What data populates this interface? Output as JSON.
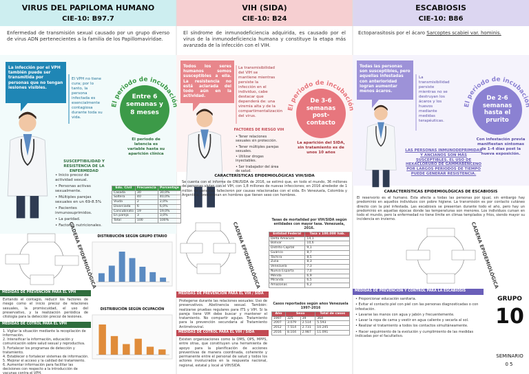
{
  "vph": {
    "title": "VIRUS DEL PAPILOMA HUMANO",
    "code": "CIE-10: B97.7",
    "description": "Enfermedad de transmisión sexual causado por un grupo diverso de virus ADN pertenecientes a la familia de los Papillomaviridae.",
    "callout": "La infección por el VPH también puede ser transmitida por personas que no tengan lesiones visibles.",
    "side_note": "El VPH no tiene cura; por lo tanto, la persona infectada es esencialmente contagiosa durante toda su vida.",
    "incubation_label": "El periodo de incubación",
    "incubation": "Entre 6 semanas y 8 meses",
    "incubation_note": "El periodo de latencia es variable hasta su aparición clínica",
    "susceptibility_title": "SUSCEPTIBILIDAD Y RESISTENCIA DE LA ENFERMEDAD",
    "susceptibility": [
      "Inicio precoz de actividad sexual.",
      "Personas activas sexualmente.",
      "Múltiples parejas sexuales en un 69-8.5%",
      "Pacientes inmunosuprimidos.",
      "La paridad.",
      "Factores nutricionales."
    ],
    "civil_table": {
      "header": [
        "Edo. Civil",
        "Frecuencia",
        "Porcentaje"
      ],
      "rows": [
        [
          "Casada",
          "30",
          "30,0%"
        ],
        [
          "Soltera",
          "40",
          "40,0%"
        ],
        [
          "Viuda",
          "2",
          "2,0%"
        ],
        [
          "Divorciada",
          "6",
          "6,0%"
        ],
        [
          "Concubinato",
          "19",
          "19,0%"
        ],
        [
          "En pareja",
          "3",
          "3,0%"
        ],
        [
          "Total",
          "100",
          "100%"
        ]
      ]
    },
    "cadena_label": "CADENA EPIDEMIOLÓGICA",
    "charts": [
      {
        "title": "DISTRIBUCIÓN SEGÚN GRUPO ETARIO",
        "values": [
          8,
          15,
          28,
          22,
          14,
          9,
          4
        ]
      },
      {
        "title": "DISTRIBUCIÓN SEGÚN OCUPACIÓN",
        "values": [
          34,
          21,
          12,
          18,
          9,
          6
        ]
      }
    ],
    "prevention_title": "MEDIDAS DE PREVENCIÓN PARA EL VPH",
    "prevention_text": "Evitando el contagio, reducir los factores de riesgo como el inicio precoz de relaciones sexuales, la promiscuidad, el uso del preservativo, y la realización periódica de citología para la detección precoz de lesiones.",
    "control_title": "MEDIDAS DE COTROL PARA EL VPH",
    "control_items": [
      "1. Vigilar la situación mediante la recopilación de información.",
      "2. Intensificar la información, educación y comunicación sobre salud sexual y reproductiva.",
      "3. Fortalecer los programas de detección y tratamiento.",
      "4. Establecer o fortalecer sistemas de información.",
      "5. Mejorar el acceso y la calidad del tratamiento.",
      "6. Aumentar información para facilitar las decisiones con respecto a la introducción de vacunas contra el VPH."
    ]
  },
  "vih": {
    "title": "VIH (SIDA)",
    "code": "CIE-10: B24",
    "description": "El síndrome de inmunodeficiencia adquirida, es causado por el virus de la inmunodeficiencia humana y constituye la etapa más avanzada de la infección con el VIH.",
    "callout": "Todos los seres humanos somos susceptibles a ella. La resistencia no está aclarada del todo aún en la actividad.",
    "side_note": "La transmisibilidad del VIH se mantiene mientras persiste la infección en el individuo, cabe destacar que dependerá de: una viremia alta y de la compartimentalización del virus.",
    "risk_title": "FACTORES DE RIESGO VIH",
    "risks": [
      "Tener relaciones sexuales sin protección.",
      "Tener múltiples parejas sexuales.",
      "Utilizar drogas inyectables.",
      "Ser trabajador del área de salud."
    ],
    "incubation_label": "El periodo de incubación",
    "incubation": "De 3-6 semanas post-contacto",
    "incubation_note": "La aparición del SIDA, sin tratamiento es de unos 10 años",
    "characteristics_title": "CARACTERÍSTICAS EPIDEMIOLÓGICAS VIH/SIDA",
    "characteristics": "Se cuenta con el informe de ONUSIDA de 2016, se estimó que, en todo el mundo, 36 millones de personas vivían con el VIH, con 1,8 millones de nuevas infecciones; en 2016 alrededor de 1 millón de personas fallecieron por causas relacionadas con el sida. En Venezuela, Colombia y Argentina, predominan en hombres que tienen sexo con hombres.",
    "cadena_label": "CADENA EPIDEMIOLÓGICA",
    "mortality_table": {
      "title": "Tasas de mortalidad por VIH/SIDA según entidades con mayor tasa. Venezuela, 2016.",
      "header": [
        "Entidad Federal",
        "Tasa x 100.000 hab."
      ],
      "rows": [
        [
          "Delta Amacuro",
          "14,1"
        ],
        [
          "Bolívar",
          "10,6"
        ],
        [
          "Distrito Capital",
          "9,1"
        ],
        [
          "Guárico",
          "8,7"
        ],
        [
          "Táchira",
          "8,5"
        ],
        [
          "Zulia",
          "8,3"
        ],
        [
          "Venezuela",
          "7,3"
        ],
        [
          "Nueva Esparta",
          "7,0"
        ],
        [
          "Mérida",
          "6,9"
        ],
        [
          "Miranda",
          "6,5"
        ],
        [
          "Amazonas",
          "6,2"
        ]
      ]
    },
    "cases_table": {
      "title": "Casos reportados según años Venezuela 1997-2016",
      "header": [
        "Año",
        "Sexo",
        "Total de casos"
      ],
      "rows": [
        [
          "1997",
          "325",
          "39",
          "364"
        ],
        [
          "2007",
          "3.079",
          "2.514",
          "5.593"
        ],
        [
          "2012",
          "7.514",
          "2.731",
          "10.245"
        ],
        [
          "2016",
          "8.104",
          "2.987",
          "11.091"
        ]
      ]
    },
    "prevention_title": "MEDIDAS DE PREVENCIÓN PARA EL VIH / SIDA",
    "prevention_text": "Protegerse durante las relaciones sexuales: Uso de preservativos. Abstinencia sexual. También: realizarse pruebas regulares para ITS y VIH. Si la pareja tiene VIH debe buscar y mantener el tratamiento. No compartir agujas. Tratamiento para la prevención secundaria al Tratamiento Antirretroviral.",
    "control_title": "MEDIDAS DE COTROL PARA EL VIH / SIDA",
    "control_text": "Existen organizaciones como la OMS, OPS, MPPS, entre otras, que constituyen una herramienta de apoyo para la planificación de acciones preventivas de manera coordinada, coherente y permanente entre el personal de salud y todos los actores involucrados en la respuesta nacional, regional, estatal y local al VIH/SIDA."
  },
  "escabiosis": {
    "title": "ESCABIOSIS",
    "code": "CIE-10: B86",
    "description_prefix": "Ectoparasitosis por el ácaro ",
    "description_species": "Sarcoptes scabiei var. hominis.",
    "callout": "Todas las personas son susceptibles, pero aquellas infestadas con anterioridad logran aumentar menos ácaros.",
    "side_note": "La transmisibilidad persiste mientras no se destruyan los ácaros y los huevos mediante medidas terapéuticas.",
    "incubation_label": "El periodo de incubación",
    "incubation": "De 2-6 semanas hasta el prurito",
    "incubation_note": "Con infestación previa manifiestan síntomas de 1-4 días post la nueva exposición.",
    "resistance": "LAS PERSONAS INMUNODEPRIMIDAS Y ANCIANOS SON MÁS SUSCEPTIBLES. EL USO DE HEXACLORURO DE GAMMABENCENO POR LARGOS PERIODOS DE TIEMPO PUEDE GENERAR RESISTENCIA.",
    "characteristics_title": "CARACTERÍSTICAS EPIDEMIOLÓGICAS DE ESCABIOSIS",
    "characteristics": "El reservorio es el humano. Esta afecta a todas las personas por igual, sin embargo hay predominio en aquellos individuos con pobre higiene. La transmisión es por contacto cutáneo directo con la piel infestada. Las escabiosis se presentan durante todo el año, pero hay un predominio en aquellas épocas donde las temperaturas son menores. Los individuos cursan en todo el mundo, pero la enfermedad no tiene límite en climas templados y fríos, siendo mayor su incidencia en invierno.",
    "cadena_label": "CADENA EPIDEMIOLÓGICA",
    "prevention_title": "MEDIDAS DE PREVENCIÓN Y CONTROL PARA LA ESCABIOSIS",
    "prevention_items": [
      "Proporcionar educación sanitaria.",
      "Evitar el contacto piel con piel con las personas diagnosticadas o con infestación.",
      "Lavarse las manos con agua y jabón y frecuentemente.",
      "Lavar la ropa de cama y vestir en agua caliente y secarla al sol.",
      "Realizar el tratamiento a todos los contactos simultáneamente.",
      "Hacer seguimiento de la evolución y cumplimiento de las medidas indicadas por el facultativo."
    ]
  },
  "footer": {
    "group_label": "GRUPO",
    "group": "10",
    "seminar_label": "SEMINARIO",
    "seminar": "05"
  }
}
